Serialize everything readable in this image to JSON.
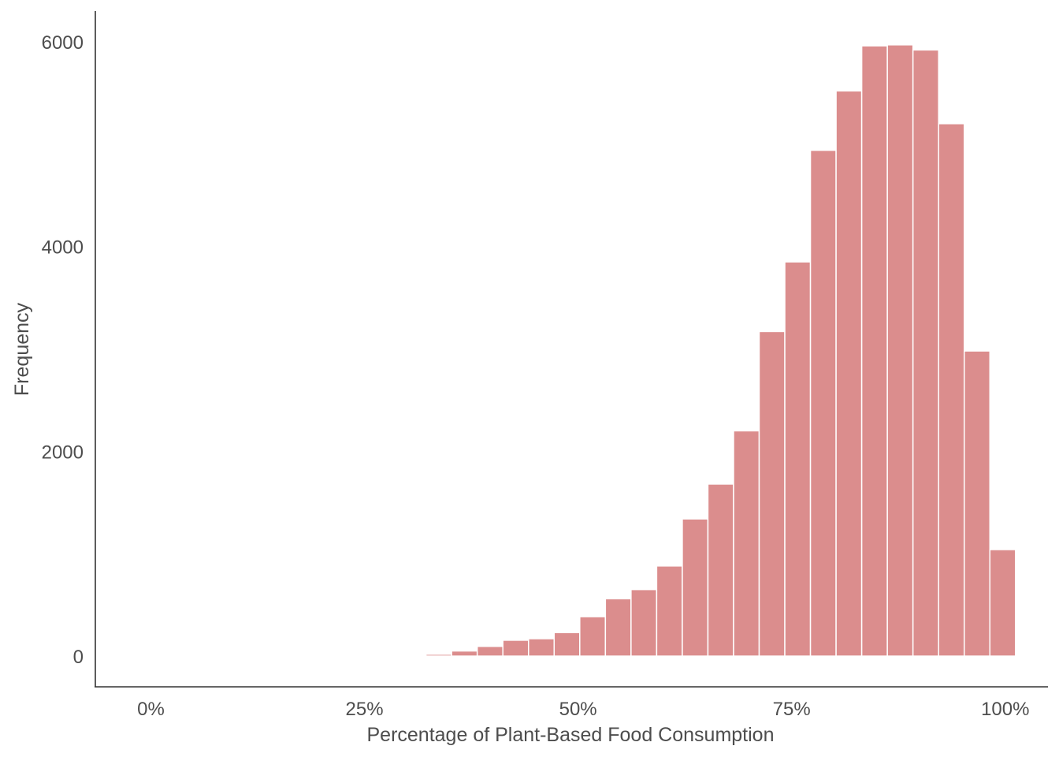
{
  "chart_data": {
    "type": "bar",
    "subtype": "histogram",
    "title": "",
    "xlabel": "Percentage of Plant-Based Food Consumption",
    "ylabel": "Frequency",
    "x_ticks": [
      {
        "value": 0,
        "label": "0%"
      },
      {
        "value": 25,
        "label": "25%"
      },
      {
        "value": 50,
        "label": "50%"
      },
      {
        "value": 75,
        "label": "75%"
      },
      {
        "value": 100,
        "label": "100%"
      }
    ],
    "y_ticks": [
      {
        "value": 0,
        "label": "0"
      },
      {
        "value": 2000,
        "label": "2000"
      },
      {
        "value": 4000,
        "label": "4000"
      },
      {
        "value": 6000,
        "label": "6000"
      }
    ],
    "xlim": [
      -6.5,
      105
    ],
    "ylim": [
      -300,
      6300
    ],
    "grid": false,
    "legend": "none",
    "bar_color": "#db8d8d",
    "bar_edge_color": "#ffffff",
    "bins": [
      {
        "start": 17.2,
        "end": 20.2,
        "count": 10
      },
      {
        "start": 29.2,
        "end": 32.2,
        "count": 8
      },
      {
        "start": 32.2,
        "end": 35.2,
        "count": 18
      },
      {
        "start": 35.2,
        "end": 38.2,
        "count": 50
      },
      {
        "start": 38.2,
        "end": 41.2,
        "count": 95
      },
      {
        "start": 41.2,
        "end": 44.2,
        "count": 155
      },
      {
        "start": 44.2,
        "end": 47.2,
        "count": 170
      },
      {
        "start": 47.2,
        "end": 50.2,
        "count": 230
      },
      {
        "start": 50.2,
        "end": 53.2,
        "count": 385
      },
      {
        "start": 53.2,
        "end": 56.2,
        "count": 560
      },
      {
        "start": 56.2,
        "end": 59.2,
        "count": 650
      },
      {
        "start": 59.2,
        "end": 62.2,
        "count": 880
      },
      {
        "start": 62.2,
        "end": 65.2,
        "count": 1340
      },
      {
        "start": 65.2,
        "end": 68.2,
        "count": 1680
      },
      {
        "start": 68.2,
        "end": 71.2,
        "count": 2200
      },
      {
        "start": 71.2,
        "end": 74.2,
        "count": 3170
      },
      {
        "start": 74.2,
        "end": 77.2,
        "count": 3850
      },
      {
        "start": 77.2,
        "end": 80.2,
        "count": 4940
      },
      {
        "start": 80.2,
        "end": 83.2,
        "count": 5520
      },
      {
        "start": 83.2,
        "end": 86.2,
        "count": 5960
      },
      {
        "start": 86.2,
        "end": 89.2,
        "count": 5970
      },
      {
        "start": 89.2,
        "end": 92.2,
        "count": 5920
      },
      {
        "start": 92.2,
        "end": 95.2,
        "count": 5200
      },
      {
        "start": 95.2,
        "end": 98.2,
        "count": 2980
      },
      {
        "start": 98.2,
        "end": 101.2,
        "count": 1040
      }
    ]
  }
}
